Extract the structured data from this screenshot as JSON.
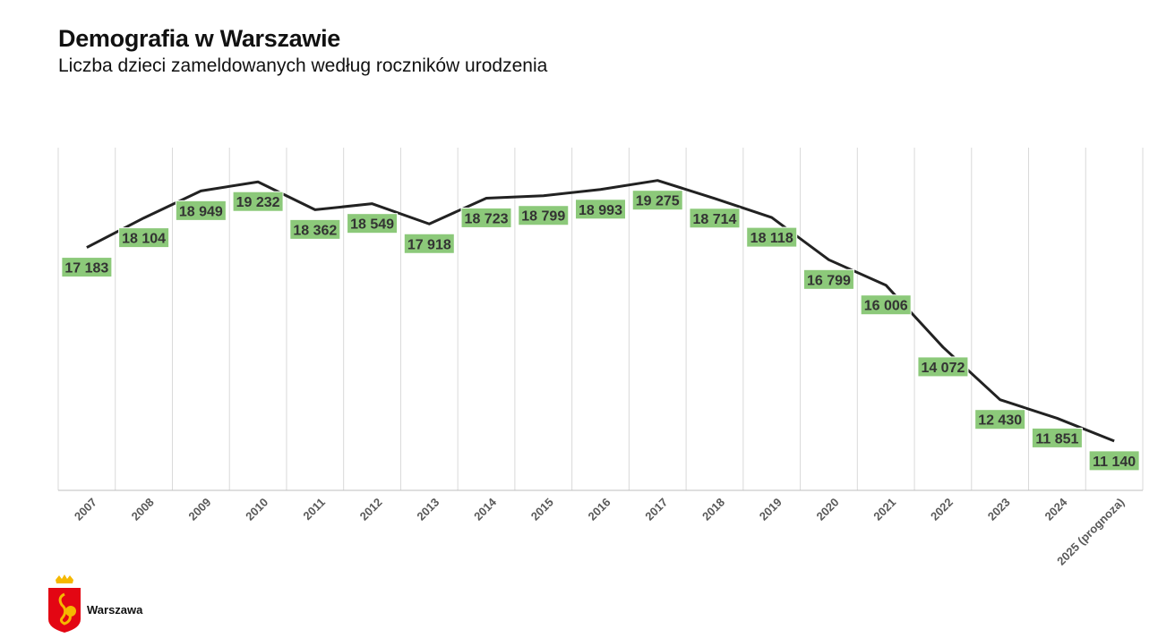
{
  "header": {
    "title": "Demografia w Warszawie",
    "subtitle": "Liczba dzieci zameldowanych według roczników urodzenia"
  },
  "logo": {
    "text": "Warszawa",
    "colors": {
      "shield": "#e30613",
      "crown": "#f5b800",
      "mermaid": "#f5b800"
    }
  },
  "colors": {
    "line": "#222222",
    "label_bg": "#8cc97a",
    "label_text": "#333333",
    "grid": "#d9d9d9"
  },
  "chart_data": {
    "type": "line",
    "title": "Demografia w Warszawie",
    "subtitle": "Liczba dzieci zameldowanych według roczników urodzenia",
    "xlabel": "",
    "ylabel": "",
    "categories": [
      "2007",
      "2008",
      "2009",
      "2010",
      "2011",
      "2012",
      "2013",
      "2014",
      "2015",
      "2016",
      "2017",
      "2018",
      "2019",
      "2020",
      "2021",
      "2022",
      "2023",
      "2024",
      "2025 (prognoza)"
    ],
    "series": [
      {
        "values": [
          17183,
          18104,
          18949,
          19232,
          18362,
          18549,
          17918,
          18723,
          18799,
          18993,
          19275,
          18714,
          18118,
          16799,
          16006,
          14072,
          12430,
          11851,
          11140
        ]
      }
    ],
    "data_labels": [
      "17 183",
      "18 104",
      "18 949",
      "19 232",
      "18 362",
      "18 549",
      "17 918",
      "18 723",
      "18 799",
      "18 993",
      "19 275",
      "18 714",
      "18 118",
      "16 799",
      "16 006",
      "14 072",
      "12 430",
      "11 851",
      "11 140"
    ],
    "ylim": [
      9600,
      20300
    ],
    "grid": "vertical",
    "legend": "none"
  }
}
